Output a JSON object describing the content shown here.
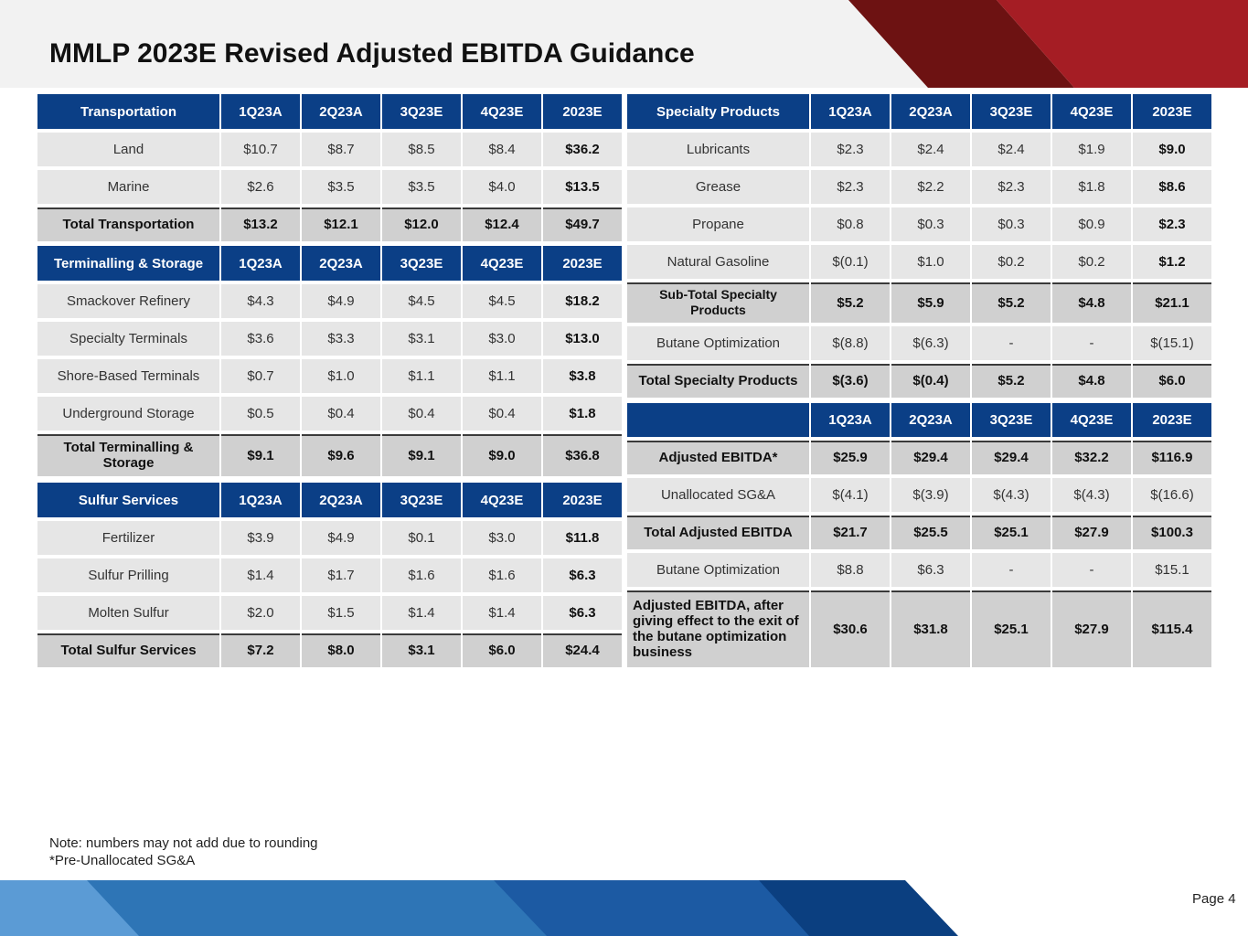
{
  "header": {
    "title": "MMLP 2023E Revised Adjusted EBITDA Guidance"
  },
  "left_tables": [
    {
      "header": [
        "Transportation",
        "1Q23A",
        "2Q23A",
        "3Q23E",
        "4Q23E",
        "2023E"
      ],
      "rows": [
        [
          "Land",
          "$10.7",
          "$8.7",
          "$8.5",
          "$8.4",
          "$36.2"
        ],
        [
          "Marine",
          "$2.6",
          "$3.5",
          "$3.5",
          "$4.0",
          "$13.5"
        ],
        [
          "Total Transportation",
          "$13.2",
          "$12.1",
          "$12.0",
          "$12.4",
          "$49.7"
        ]
      ]
    },
    {
      "header": [
        "Terminalling & Storage",
        "1Q23A",
        "2Q23A",
        "3Q23E",
        "4Q23E",
        "2023E"
      ],
      "rows": [
        [
          "Smackover Refinery",
          "$4.3",
          "$4.9",
          "$4.5",
          "$4.5",
          "$18.2"
        ],
        [
          "Specialty Terminals",
          "$3.6",
          "$3.3",
          "$3.1",
          "$3.0",
          "$13.0"
        ],
        [
          "Shore-Based Terminals",
          "$0.7",
          "$1.0",
          "$1.1",
          "$1.1",
          "$3.8"
        ],
        [
          "Underground Storage",
          "$0.5",
          "$0.4",
          "$0.4",
          "$0.4",
          "$1.8"
        ],
        [
          "Total Terminalling & Storage",
          "$9.1",
          "$9.6",
          "$9.1",
          "$9.0",
          "$36.8"
        ]
      ]
    },
    {
      "header": [
        "Sulfur Services",
        "1Q23A",
        "2Q23A",
        "3Q23E",
        "4Q23E",
        "2023E"
      ],
      "rows": [
        [
          "Fertilizer",
          "$3.9",
          "$4.9",
          "$0.1",
          "$3.0",
          "$11.8"
        ],
        [
          "Sulfur Prilling",
          "$1.4",
          "$1.7",
          "$1.6",
          "$1.6",
          "$6.3"
        ],
        [
          "Molten Sulfur",
          "$2.0",
          "$1.5",
          "$1.4",
          "$1.4",
          "$6.3"
        ],
        [
          "Total Sulfur Services",
          "$7.2",
          "$8.0",
          "$3.1",
          "$6.0",
          "$24.4"
        ]
      ]
    }
  ],
  "right_tables": [
    {
      "header": [
        "Specialty Products",
        "1Q23A",
        "2Q23A",
        "3Q23E",
        "4Q23E",
        "2023E"
      ],
      "rows": [
        [
          "Lubricants",
          "$2.3",
          "$2.4",
          "$2.4",
          "$1.9",
          "$9.0"
        ],
        [
          "Grease",
          "$2.3",
          "$2.2",
          "$2.3",
          "$1.8",
          "$8.6"
        ],
        [
          "Propane",
          "$0.8",
          "$0.3",
          "$0.3",
          "$0.9",
          "$2.3"
        ],
        [
          "Natural Gasoline",
          "$(0.1)",
          "$1.0",
          "$0.2",
          "$0.2",
          "$1.2"
        ],
        [
          "Sub-Total Specialty Products",
          "$5.2",
          "$5.9",
          "$5.2",
          "$4.8",
          "$21.1"
        ],
        [
          "Butane Optimization",
          "$(8.8)",
          "$(6.3)",
          "-",
          "-",
          "$(15.1)"
        ],
        [
          "Total Specialty Products",
          "$(3.6)",
          "$(0.4)",
          "$5.2",
          "$4.8",
          "$6.0"
        ]
      ]
    },
    {
      "header": [
        null,
        "1Q23A",
        "2Q23A",
        "3Q23E",
        "4Q23E",
        "2023E"
      ],
      "rows": [
        [
          "Adjusted EBITDA*",
          "$25.9",
          "$29.4",
          "$29.4",
          "$32.2",
          "$116.9"
        ],
        [
          "Unallocated SG&A",
          "$(4.1)",
          "$(3.9)",
          "$(4.3)",
          "$(4.3)",
          "$(16.6)"
        ],
        [
          "Total Adjusted EBITDA",
          "$21.7",
          "$25.5",
          "$25.1",
          "$27.9",
          "$100.3"
        ],
        [
          "Butane Optimization",
          "$8.8",
          "$6.3",
          "-",
          "-",
          "$15.1"
        ],
        [
          "Adjusted EBITDA, after giving effect to the exit of the butane optimization business",
          "$30.6",
          "$31.8",
          "$25.1",
          "$27.9",
          "$115.4"
        ]
      ]
    }
  ],
  "footer": {
    "notes": [
      "Note: numbers may not add due to rounding",
      "*Pre-Unallocated SG&A"
    ],
    "page": "Page 4"
  }
}
